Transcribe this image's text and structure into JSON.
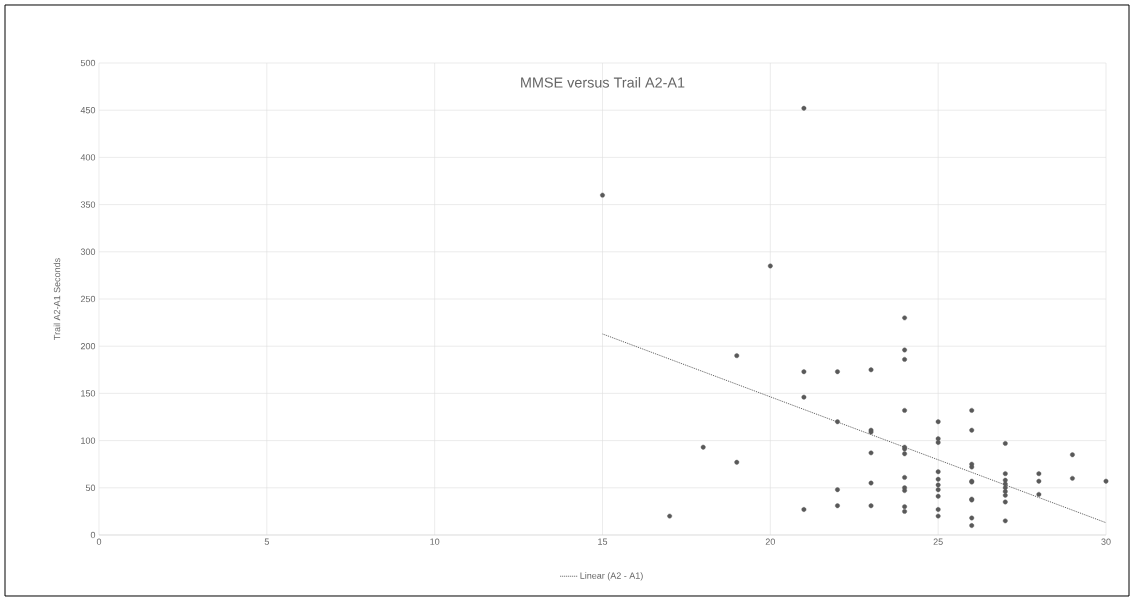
{
  "chart_data": {
    "type": "scatter",
    "title": "MMSE versus Trail A2-A1",
    "ylabel": "Trail A2-A1  Seconds",
    "xlim": [
      0,
      30
    ],
    "ylim": [
      0,
      500
    ],
    "xticks": [
      0,
      5,
      10,
      15,
      20,
      25,
      30
    ],
    "yticks": [
      0,
      50,
      100,
      150,
      200,
      250,
      300,
      350,
      400,
      450,
      500
    ],
    "grid": true,
    "legend": "bottom",
    "marker": "circle",
    "series": [
      {
        "color": "#595959",
        "x": [
          15,
          17,
          18,
          19,
          19,
          20,
          21,
          21,
          21,
          21,
          22,
          22,
          22,
          22,
          23,
          23,
          23,
          23,
          23,
          23,
          24,
          24,
          24,
          24,
          24,
          24,
          24,
          24,
          24,
          24,
          24,
          24,
          25,
          25,
          25,
          25,
          25,
          25,
          25,
          25,
          25,
          25,
          26,
          26,
          26,
          26,
          26,
          26,
          26,
          26,
          26,
          26,
          27,
          27,
          27,
          27,
          27,
          27,
          27,
          27,
          27,
          28,
          28,
          28,
          29,
          29,
          30
        ],
        "values": [
          360,
          20,
          93,
          190,
          77,
          285,
          452,
          173,
          146,
          27,
          173,
          120,
          48,
          31,
          175,
          111,
          109,
          87,
          55,
          31,
          230,
          196,
          186,
          132,
          93,
          91,
          86,
          61,
          50,
          47,
          30,
          25,
          120,
          102,
          98,
          67,
          59,
          53,
          48,
          41,
          27,
          20,
          132,
          111,
          75,
          72,
          57,
          56,
          38,
          37,
          18,
          10,
          97,
          65,
          58,
          54,
          50,
          46,
          42,
          35,
          15,
          65,
          57,
          43,
          85,
          60,
          57
        ]
      },
      {
        "type": "line",
        "name": "Linear (A2 - A1)",
        "color": "#595959",
        "marker": "none",
        "line_style": "dotted",
        "x": [
          15,
          30
        ],
        "values": [
          213,
          13
        ]
      }
    ]
  }
}
